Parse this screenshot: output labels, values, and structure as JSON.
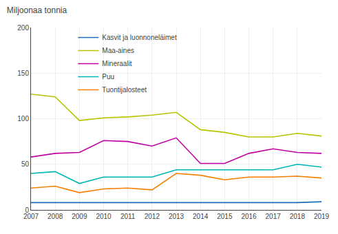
{
  "chart_data": {
    "type": "line",
    "title": "Miljoonaa tonnia",
    "x": [
      2007,
      2008,
      2009,
      2010,
      2011,
      2012,
      2013,
      2014,
      2015,
      2016,
      2017,
      2018,
      2019
    ],
    "series": [
      {
        "name": "Kasvit ja luonnoneläimet",
        "color": "#1f6eb5",
        "values": [
          8,
          8,
          8,
          8,
          8,
          8,
          8,
          8,
          8,
          8,
          8,
          8,
          9
        ]
      },
      {
        "name": "Maa-aines",
        "color": "#b5c500",
        "values": [
          127,
          124,
          98,
          101,
          102,
          104,
          107,
          88,
          85,
          80,
          80,
          84,
          81
        ]
      },
      {
        "name": "Mineraalit",
        "color": "#c000a0",
        "values": [
          58,
          62,
          63,
          76,
          75,
          70,
          79,
          51,
          51,
          62,
          67,
          63,
          62
        ]
      },
      {
        "name": "Puu",
        "color": "#00b5b5",
        "values": [
          40,
          42,
          29,
          36,
          36,
          36,
          44,
          44,
          44,
          44,
          44,
          50,
          47
        ]
      },
      {
        "name": "Tuontijalosteet",
        "color": "#f57f00",
        "values": [
          24,
          26,
          19,
          23,
          24,
          22,
          40,
          38,
          33,
          36,
          36,
          37,
          35
        ]
      }
    ],
    "xlim": [
      2007,
      2019
    ],
    "xticks": [
      2007,
      2008,
      2009,
      2010,
      2011,
      2012,
      2013,
      2014,
      2015,
      2016,
      2017,
      2018,
      2019
    ],
    "ylim": [
      0,
      200
    ],
    "yticks": [
      0,
      50,
      100,
      150,
      200
    ],
    "grid": true,
    "legend": "upper left"
  }
}
